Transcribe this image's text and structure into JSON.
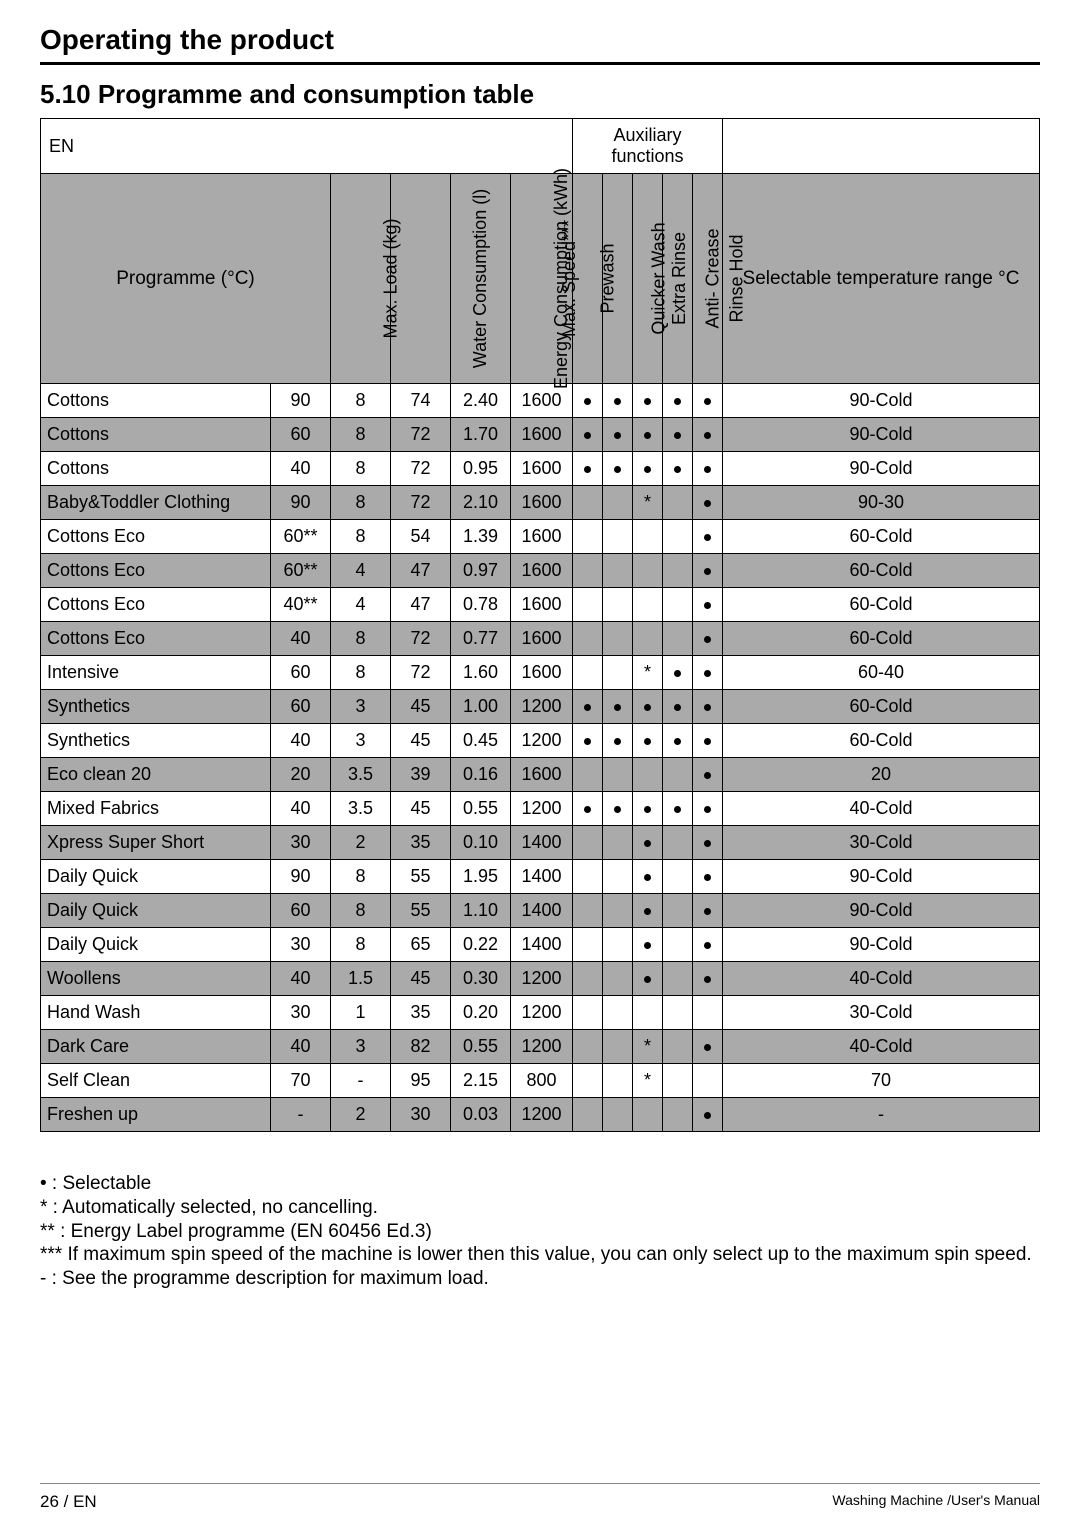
{
  "section_title": "Operating the product",
  "subsection_title": "5.10 Programme and consumption table",
  "headers": {
    "en": "EN",
    "aux": "Auxiliary functions",
    "programme": "Programme (°C)",
    "load": "Max. Load (kg)",
    "water": "Water Consumption (l)",
    "energy": "Energy Consumption (kWh)",
    "speed": "Max. Speed***",
    "prewash": "Prewash",
    "quicker": "Quicker Wash",
    "extra": "Extra Rinse",
    "anti": "Anti- Crease",
    "rinse": "Rinse Hold",
    "range": "Selectable temperature range °C"
  },
  "rows": [
    {
      "name": "Cottons",
      "temp": "90",
      "load": "8",
      "water": "74",
      "energy": "2.40",
      "speed": "1600",
      "pw": "•",
      "qw": "•",
      "er": "•",
      "ac": "•",
      "rh": "•",
      "range": "90-Cold",
      "shade": false
    },
    {
      "name": "Cottons",
      "temp": "60",
      "load": "8",
      "water": "72",
      "energy": "1.70",
      "speed": "1600",
      "pw": "•",
      "qw": "•",
      "er": "•",
      "ac": "•",
      "rh": "•",
      "range": "90-Cold",
      "shade": true
    },
    {
      "name": "Cottons",
      "temp": "40",
      "load": "8",
      "water": "72",
      "energy": "0.95",
      "speed": "1600",
      "pw": "•",
      "qw": "•",
      "er": "•",
      "ac": "•",
      "rh": "•",
      "range": "90-Cold",
      "shade": false
    },
    {
      "name": "Baby&Toddler Clothing",
      "temp": "90",
      "load": "8",
      "water": "72",
      "energy": "2.10",
      "speed": "1600",
      "pw": "",
      "qw": "",
      "er": "*",
      "ac": "",
      "rh": "•",
      "range": "90-30",
      "shade": true
    },
    {
      "name": "Cottons Eco",
      "temp": "60**",
      "load": "8",
      "water": "54",
      "energy": "1.39",
      "speed": "1600",
      "pw": "",
      "qw": "",
      "er": "",
      "ac": "",
      "rh": "•",
      "range": "60-Cold",
      "shade": false
    },
    {
      "name": "Cottons Eco",
      "temp": "60**",
      "load": "4",
      "water": "47",
      "energy": "0.97",
      "speed": "1600",
      "pw": "",
      "qw": "",
      "er": "",
      "ac": "",
      "rh": "•",
      "range": "60-Cold",
      "shade": true
    },
    {
      "name": "Cottons Eco",
      "temp": "40**",
      "load": "4",
      "water": "47",
      "energy": "0.78",
      "speed": "1600",
      "pw": "",
      "qw": "",
      "er": "",
      "ac": "",
      "rh": "•",
      "range": "60-Cold",
      "shade": false
    },
    {
      "name": "Cottons Eco",
      "temp": "40",
      "load": "8",
      "water": "72",
      "energy": "0.77",
      "speed": "1600",
      "pw": "",
      "qw": "",
      "er": "",
      "ac": "",
      "rh": "•",
      "range": "60-Cold",
      "shade": true
    },
    {
      "name": "Intensive",
      "temp": "60",
      "load": "8",
      "water": "72",
      "energy": "1.60",
      "speed": "1600",
      "pw": "",
      "qw": "",
      "er": "*",
      "ac": "•",
      "rh": "•",
      "range": "60-40",
      "shade": false
    },
    {
      "name": "Synthetics",
      "temp": "60",
      "load": "3",
      "water": "45",
      "energy": "1.00",
      "speed": "1200",
      "pw": "•",
      "qw": "•",
      "er": "•",
      "ac": "•",
      "rh": "•",
      "range": "60-Cold",
      "shade": true
    },
    {
      "name": "Synthetics",
      "temp": "40",
      "load": "3",
      "water": "45",
      "energy": "0.45",
      "speed": "1200",
      "pw": "•",
      "qw": "•",
      "er": "•",
      "ac": "•",
      "rh": "•",
      "range": "60-Cold",
      "shade": false
    },
    {
      "name": "Eco clean 20",
      "temp": "20",
      "load": "3.5",
      "water": "39",
      "energy": "0.16",
      "speed": "1600",
      "pw": "",
      "qw": "",
      "er": "",
      "ac": "",
      "rh": "•",
      "range": "20",
      "shade": true
    },
    {
      "name": "Mixed Fabrics",
      "temp": "40",
      "load": "3.5",
      "water": "45",
      "energy": "0.55",
      "speed": "1200",
      "pw": "•",
      "qw": "•",
      "er": "•",
      "ac": "•",
      "rh": "•",
      "range": "40-Cold",
      "shade": false
    },
    {
      "name": "Xpress Super Short",
      "temp": "30",
      "load": "2",
      "water": "35",
      "energy": "0.10",
      "speed": "1400",
      "pw": "",
      "qw": "",
      "er": "•",
      "ac": "",
      "rh": "•",
      "range": "30-Cold",
      "shade": true
    },
    {
      "name": "Daily Quick",
      "temp": "90",
      "load": "8",
      "water": "55",
      "energy": "1.95",
      "speed": "1400",
      "pw": "",
      "qw": "",
      "er": "•",
      "ac": "",
      "rh": "•",
      "range": "90-Cold",
      "shade": false
    },
    {
      "name": "Daily Quick",
      "temp": "60",
      "load": "8",
      "water": "55",
      "energy": "1.10",
      "speed": "1400",
      "pw": "",
      "qw": "",
      "er": "•",
      "ac": "",
      "rh": "•",
      "range": "90-Cold",
      "shade": true
    },
    {
      "name": "Daily Quick",
      "temp": "30",
      "load": "8",
      "water": "65",
      "energy": "0.22",
      "speed": "1400",
      "pw": "",
      "qw": "",
      "er": "•",
      "ac": "",
      "rh": "•",
      "range": "90-Cold",
      "shade": false
    },
    {
      "name": "Woollens",
      "temp": "40",
      "load": "1.5",
      "water": "45",
      "energy": "0.30",
      "speed": "1200",
      "pw": "",
      "qw": "",
      "er": "•",
      "ac": "",
      "rh": "•",
      "range": "40-Cold",
      "shade": true
    },
    {
      "name": "Hand Wash",
      "temp": "30",
      "load": "1",
      "water": "35",
      "energy": "0.20",
      "speed": "1200",
      "pw": "",
      "qw": "",
      "er": "",
      "ac": "",
      "rh": "",
      "range": "30-Cold",
      "shade": false
    },
    {
      "name": "Dark Care",
      "temp": "40",
      "load": "3",
      "water": "82",
      "energy": "0.55",
      "speed": "1200",
      "pw": "",
      "qw": "",
      "er": "*",
      "ac": "",
      "rh": "•",
      "range": "40-Cold",
      "shade": true
    },
    {
      "name": "Self Clean",
      "temp": "70",
      "load": "-",
      "water": "95",
      "energy": "2.15",
      "speed": "800",
      "pw": "",
      "qw": "",
      "er": "*",
      "ac": "",
      "rh": "",
      "range": "70",
      "shade": false
    },
    {
      "name": "Freshen up",
      "temp": "-",
      "load": "2",
      "water": "30",
      "energy": "0.03",
      "speed": "1200",
      "pw": "",
      "qw": "",
      "er": "",
      "ac": "",
      "rh": "•",
      "range": "-",
      "shade": true
    }
  ],
  "notes": [
    "• : Selectable",
    "* : Automatically selected, no cancelling.",
    "** : Energy Label programme (EN 60456 Ed.3)",
    "*** If maximum spin speed of the machine is lower then this value, you can only select up to the maximum spin speed.",
    "- : See the programme description for maximum load."
  ],
  "footer": {
    "left": "26 / EN",
    "right": "Washing Machine /User's Manual"
  }
}
